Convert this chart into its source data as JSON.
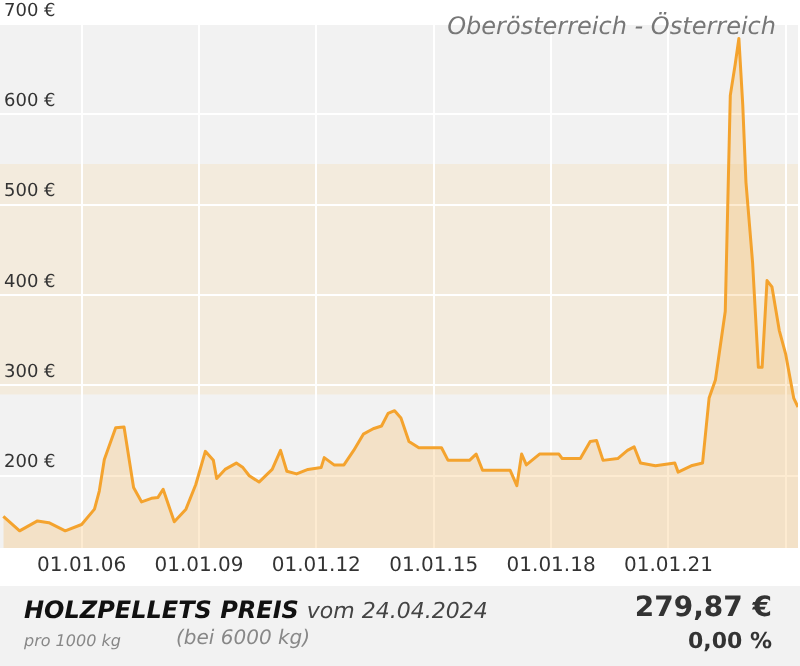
{
  "chart_data": {
    "type": "area",
    "title": "HOLZPELLETS PREIS",
    "subtitle": "vom 24.04.2024",
    "annotations": [
      "Oberösterreich - Österreich",
      "pro 1000 kg",
      "(bei 6000 kg)",
      "279,87 €",
      "0,00 %"
    ],
    "x": [
      "2004-01-01",
      "2004-06-01",
      "2004-11-15",
      "2005-03-01",
      "2005-08-01",
      "2006-01-01",
      "2006-05-01",
      "2006-06-15",
      "2006-08-01",
      "2006-11-15",
      "2007-02-01",
      "2007-05-01",
      "2007-07-15",
      "2007-10-15",
      "2007-12-15",
      "2008-02-01",
      "2008-05-15",
      "2008-09-01",
      "2008-12-01",
      "2009-03-01",
      "2009-05-15",
      "2009-06-15",
      "2009-09-01",
      "2009-12-15",
      "2010-02-15",
      "2010-04-15",
      "2010-07-15",
      "2010-11-15",
      "2011-02-01",
      "2011-04-01",
      "2011-07-01",
      "2011-10-15",
      "2012-02-15",
      "2012-03-15",
      "2012-06-15",
      "2012-09-15",
      "2012-12-15",
      "2013-03-15",
      "2013-06-15",
      "2013-09-01",
      "2013-11-01",
      "2014-01-01",
      "2014-03-01",
      "2014-05-15",
      "2014-08-15",
      "2015-03-15",
      "2015-05-15",
      "2015-12-01",
      "2016-02-01",
      "2016-04-01",
      "2016-12-15",
      "2017-02-15",
      "2017-04-01",
      "2017-05-15",
      "2017-09-15",
      "2018-03-15",
      "2018-04-15",
      "2018-10-01",
      "2019-01-01",
      "2019-03-01",
      "2019-05-01",
      "2019-09-15",
      "2019-12-15",
      "2020-02-15",
      "2020-04-15",
      "2020-09-01",
      "2021-03-01",
      "2021-04-01",
      "2021-08-01",
      "2021-11-15",
      "2022-01-15",
      "2022-03-15",
      "2022-06-15",
      "2022-08-01",
      "2022-09-15",
      "2022-10-20",
      "2022-11-25",
      "2022-12-25",
      "2023-02-25",
      "2023-04-20",
      "2023-05-25",
      "2023-07-10",
      "2023-08-25",
      "2023-11-01",
      "2024-01-01",
      "2024-03-15",
      "2024-04-24"
    ],
    "series": [
      {
        "color": "#f4a32e",
        "values": [
          155,
          139,
          150,
          148,
          139,
          146,
          163,
          183,
          218,
          253,
          254,
          187,
          171,
          175,
          176,
          185,
          149,
          163,
          190,
          227,
          217,
          197,
          207,
          214,
          209,
          200,
          193,
          207,
          228,
          205,
          202,
          207,
          209,
          220,
          212,
          212,
          228,
          246,
          252,
          255,
          269,
          272,
          264,
          238,
          231,
          231,
          217,
          217,
          224,
          206,
          206,
          189,
          224,
          212,
          224,
          224,
          219,
          219,
          238,
          239,
          217,
          219,
          228,
          232,
          214,
          211,
          214,
          204,
          211,
          214,
          286,
          306,
          382,
          621,
          655,
          684,
          611,
          525,
          436,
          320,
          320,
          416,
          409,
          361,
          334,
          286,
          276
        ]
      }
    ],
    "xlim": [
      "2003-12-01",
      "2024-04-24"
    ],
    "xticks": [
      {
        "value": "2006-01-01",
        "label": "01.01.06"
      },
      {
        "value": "2009-01-01",
        "label": "01.01.09"
      },
      {
        "value": "2012-01-01",
        "label": "01.01.12"
      },
      {
        "value": "2015-01-01",
        "label": "01.01.15"
      },
      {
        "value": "2018-01-01",
        "label": "01.01.18"
      },
      {
        "value": "2021-01-01",
        "label": "01.01.21"
      },
      {
        "value": "2024-01-01",
        "label": null
      }
    ],
    "ylim": [
      120,
      700
    ],
    "yticks": [
      {
        "value": 200,
        "label": "200 €"
      },
      {
        "value": 300,
        "label": "300 €"
      },
      {
        "value": 400,
        "label": "400 €"
      },
      {
        "value": 500,
        "label": "500 €"
      },
      {
        "value": 600,
        "label": "600 €"
      },
      {
        "value": 700,
        "label": "700 €"
      }
    ],
    "bands": [
      {
        "axis": "y",
        "from": 290,
        "to": 545,
        "color": "#f3ebdd"
      }
    ],
    "grid": true,
    "legend": false
  }
}
